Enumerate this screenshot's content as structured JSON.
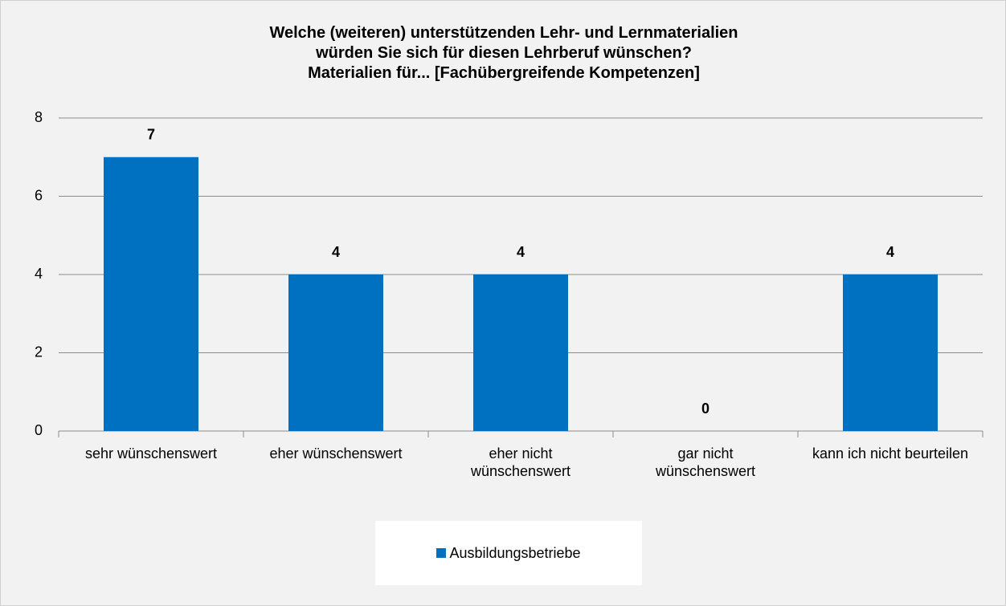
{
  "chart_data": {
    "type": "bar",
    "title": [
      "Welche (weiteren) unterstützenden Lehr- und Lernmaterialien",
      "würden Sie sich für diesen Lehrberuf wünschen?",
      "Materialien für... [Fachübergreifende Kompetenzen]"
    ],
    "categories": [
      "sehr wünschenswert",
      "eher wünschenswert",
      "eher nicht wünschenswert",
      "gar nicht wünschenswert",
      "kann ich nicht beurteilen"
    ],
    "series": [
      {
        "name": "Ausbildungsbetriebe",
        "color": "#0070c0",
        "values": [
          7,
          4,
          4,
          0,
          4
        ]
      }
    ],
    "ylim": [
      0,
      8
    ],
    "yticks": [
      0,
      2,
      4,
      6,
      8
    ],
    "grid": true,
    "legend": "bottom"
  }
}
